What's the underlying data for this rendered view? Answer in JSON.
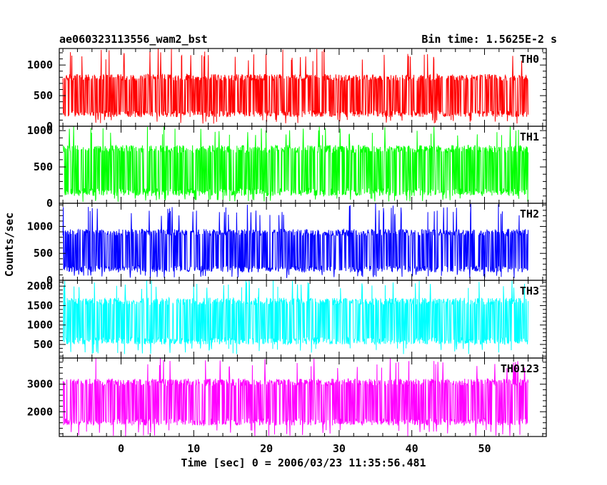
{
  "chart_data": {
    "type": "line",
    "title_left": "ae060323113556_wam2_bst",
    "title_right": "Bin time: 1.5625E-2 s",
    "xlabel": "Time [sec] 0 = 2006/03/23 11:35:56.481",
    "ylabel": "Counts/sec",
    "xlim": [
      -8.5,
      58.5
    ],
    "data_x_range": [
      -8,
      56
    ],
    "x_ticks": [
      0,
      10,
      20,
      30,
      40,
      50
    ],
    "x_tick_labels": [
      "0",
      "10",
      "20",
      "30",
      "40",
      "50"
    ],
    "panels": [
      {
        "name": "TH0",
        "color": "#ff0000",
        "ylim": [
          0,
          1270
        ],
        "y_ticks": [
          0,
          500,
          1000
        ],
        "y_tick_labels": [
          "0",
          "500",
          "1000"
        ],
        "typical_range": [
          150,
          850
        ],
        "extreme_range": [
          40,
          1270
        ]
      },
      {
        "name": "TH1",
        "color": "#00ff00",
        "ylim": [
          0,
          1060
        ],
        "y_ticks": [
          0,
          500,
          1000
        ],
        "y_tick_labels": [
          "0",
          "500",
          "1000"
        ],
        "typical_range": [
          100,
          800
        ],
        "extreme_range": [
          20,
          1060
        ]
      },
      {
        "name": "TH2",
        "color": "#0000ff",
        "ylim": [
          0,
          1430
        ],
        "y_ticks": [
          0,
          500,
          1000
        ],
        "y_tick_labels": [
          "0",
          "500",
          "1000"
        ],
        "typical_range": [
          150,
          950
        ],
        "extreme_range": [
          40,
          1430
        ]
      },
      {
        "name": "TH3",
        "color": "#00ffff",
        "ylim": [
          150,
          2150
        ],
        "y_ticks": [
          500,
          1000,
          1500,
          2000
        ],
        "y_tick_labels": [
          "500",
          "1000",
          "1500",
          "2000"
        ],
        "typical_range": [
          500,
          1700
        ],
        "extreme_range": [
          250,
          2150
        ]
      },
      {
        "name": "TH0123",
        "color": "#ff00ff",
        "ylim": [
          1100,
          3950
        ],
        "y_ticks": [
          2000,
          3000
        ],
        "y_tick_labels": [
          "2000",
          "3000"
        ],
        "typical_range": [
          1500,
          3200
        ],
        "extreme_range": [
          1100,
          3950
        ]
      }
    ],
    "grid": false
  }
}
